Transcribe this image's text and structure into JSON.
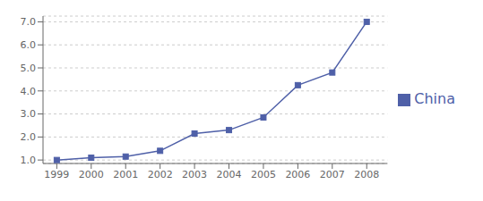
{
  "chart_data": {
    "type": "line",
    "x": [
      1999,
      2000,
      2001,
      2002,
      2003,
      2004,
      2005,
      2006,
      2007,
      2008
    ],
    "series": [
      {
        "name": "China",
        "color": "#4F60A8",
        "marker": "square",
        "values": [
          1.0,
          1.1,
          1.15,
          1.4,
          2.15,
          2.3,
          2.85,
          4.25,
          4.8,
          7.0
        ]
      }
    ],
    "xlim": [
      1998.6,
      2008.6
    ],
    "xticks": [
      1999,
      2000,
      2001,
      2002,
      2003,
      2004,
      2005,
      2006,
      2007,
      2008
    ],
    "ylim": [
      0.85,
      7.25
    ],
    "yticks": [
      {
        "value": 1.0,
        "label": "1.0"
      },
      {
        "value": 2.0,
        "label": "2.0"
      },
      {
        "value": 3.0,
        "label": "3.0"
      },
      {
        "value": 4.0,
        "label": "4.0"
      },
      {
        "value": 5.0,
        "label": "5.0"
      },
      {
        "value": 6.0,
        "label": "6.0"
      },
      {
        "value": 7.0,
        "label": "7.0"
      }
    ],
    "grid": true,
    "legend": "right"
  }
}
